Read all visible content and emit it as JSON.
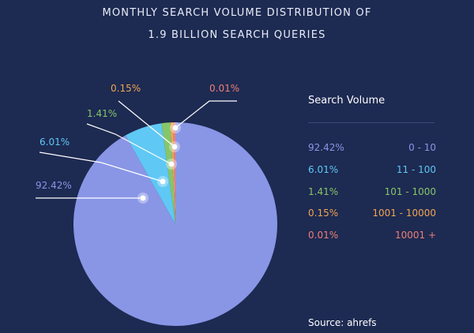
{
  "title_lines": [
    "MONTHLY SEARCH VOLUME DISTRIBUTION OF",
    "1.9 BILLION SEARCH QUERIES"
  ],
  "legend_title": "Search Volume",
  "source": "Source: ahrefs",
  "chart_data": {
    "type": "pie",
    "slices": [
      {
        "percent": 92.42,
        "label": "92.42%",
        "range": "0 - 10",
        "color": "#8996e6"
      },
      {
        "percent": 6.01,
        "label": "6.01%",
        "range": "11 - 100",
        "color": "#5fc8f4"
      },
      {
        "percent": 1.41,
        "label": "1.41%",
        "range": "101 - 1000",
        "color": "#86c66a"
      },
      {
        "percent": 0.15,
        "label": "0.15%",
        "range": "1001 - 10000",
        "color": "#f0a552"
      },
      {
        "percent": 0.01,
        "label": "0.01%",
        "range": "10001 +",
        "color": "#f07f74"
      }
    ]
  }
}
